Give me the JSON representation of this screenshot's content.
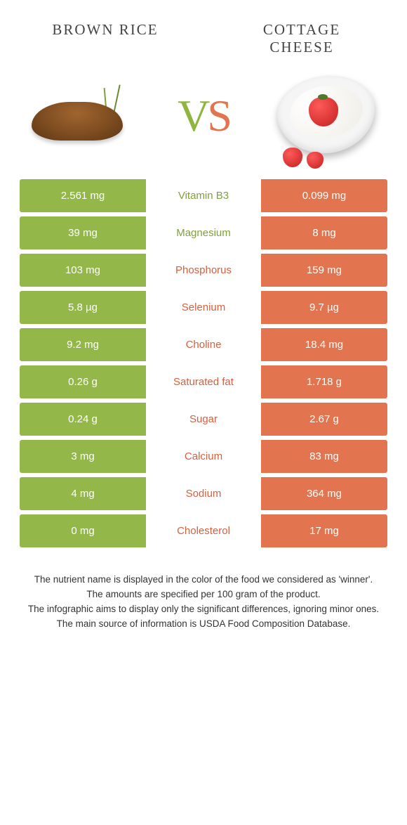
{
  "header": {
    "left_title": "Brown rice",
    "right_title": "cottage cheese",
    "vs_v": "V",
    "vs_s": "S"
  },
  "colors": {
    "left_fill": "#93b748",
    "right_fill": "#e2744f",
    "mid_bg": "#ffffff",
    "label_left_color": "#7fa03a",
    "label_right_color": "#d5603f"
  },
  "table": {
    "rows": [
      {
        "left": "2.561 mg",
        "label": "Vitamin B3",
        "right": "0.099 mg",
        "winner": "left"
      },
      {
        "left": "39 mg",
        "label": "Magnesium",
        "right": "8 mg",
        "winner": "left"
      },
      {
        "left": "103 mg",
        "label": "Phosphorus",
        "right": "159 mg",
        "winner": "right"
      },
      {
        "left": "5.8 µg",
        "label": "Selenium",
        "right": "9.7 µg",
        "winner": "right"
      },
      {
        "left": "9.2 mg",
        "label": "Choline",
        "right": "18.4 mg",
        "winner": "right"
      },
      {
        "left": "0.26 g",
        "label": "Saturated fat",
        "right": "1.718 g",
        "winner": "right"
      },
      {
        "left": "0.24 g",
        "label": "Sugar",
        "right": "2.67 g",
        "winner": "right"
      },
      {
        "left": "3 mg",
        "label": "Calcium",
        "right": "83 mg",
        "winner": "right"
      },
      {
        "left": "4 mg",
        "label": "Sodium",
        "right": "364 mg",
        "winner": "right"
      },
      {
        "left": "0 mg",
        "label": "Cholesterol",
        "right": "17 mg",
        "winner": "right"
      }
    ]
  },
  "footnotes": {
    "line1": "The nutrient name is displayed in the color of the food we considered as 'winner'.",
    "line2": "The amounts are specified per 100 gram of the product.",
    "line3": "The infographic aims to display only the significant differences, ignoring minor ones.",
    "line4": "The main source of information is USDA Food Composition Database."
  }
}
